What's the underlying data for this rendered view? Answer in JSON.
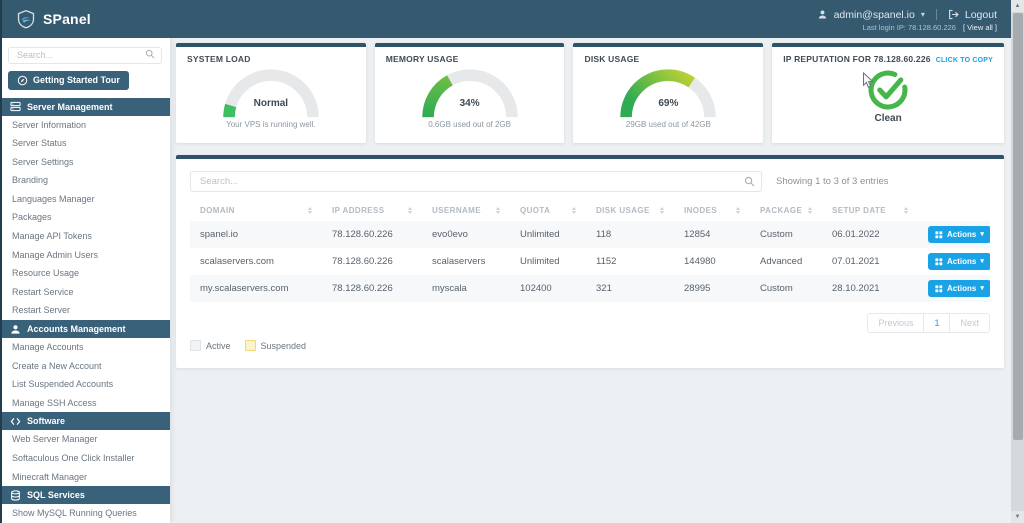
{
  "colors": {
    "header_bg": "#35596e",
    "section_bg": "#3a617a",
    "panel_top_border": "#2e5368",
    "accent_blue": "#19a2e5",
    "status_green": "#45b649",
    "gauge_track": "#e6e8ea"
  },
  "header": {
    "brand": "SPanel",
    "user_email": "admin@spanel.io",
    "logout_label": "Logout",
    "last_login_label": "Last login IP: 78.128.60.226",
    "view_all_label": "[ View all ]"
  },
  "sidebar": {
    "search_placeholder": "Search...",
    "tour_button_label": "Getting Started Tour",
    "sections": [
      {
        "icon": "server-icon",
        "label": "Server Management",
        "items": [
          "Server Information",
          "Server Status",
          "Server Settings",
          "Branding",
          "Languages Manager",
          "Packages",
          "Manage API Tokens",
          "Manage Admin Users",
          "Resource Usage",
          "Restart Service",
          "Restart Server"
        ]
      },
      {
        "icon": "users-icon",
        "label": "Accounts Management",
        "items": [
          "Manage Accounts",
          "Create a New Account",
          "List Suspended Accounts",
          "Manage SSH Access"
        ]
      },
      {
        "icon": "code-icon",
        "label": "Software",
        "items": [
          "Web Server Manager",
          "Softaculous One Click Installer",
          "Minecraft Manager"
        ]
      },
      {
        "icon": "database-icon",
        "label": "SQL Services",
        "items": [
          "Show MySQL Running Queries"
        ]
      }
    ]
  },
  "cards": {
    "system_load": {
      "title": "SYSTEM LOAD",
      "gauge_percent": 9,
      "value": "Normal",
      "subtitle": "Your VPS is running well."
    },
    "memory": {
      "title": "MEMORY USAGE",
      "gauge_percent": 34,
      "value": "34%",
      "subtitle": "0.6GB used out of 2GB"
    },
    "disk": {
      "title": "DISK USAGE",
      "gauge_percent": 69,
      "value": "69%",
      "subtitle": "29GB used out of 42GB"
    },
    "ip_reputation": {
      "title": "IP REPUTATION FOR 78.128.60.226",
      "copy_link_label": "CLICK TO COPY",
      "status": "Clean"
    }
  },
  "table": {
    "search_placeholder": "Search...",
    "showing_text": "Showing 1 to 3 of 3 entries",
    "columns": [
      "DOMAIN",
      "IP ADDRESS",
      "USERNAME",
      "QUOTA",
      "DISK USAGE",
      "INODES",
      "PACKAGE",
      "SETUP DATE"
    ],
    "actions_label": "Actions",
    "rows": [
      [
        "spanel.io",
        "78.128.60.226",
        "evo0evo",
        "Unlimited",
        "118",
        "12854",
        "Custom",
        "06.01.2022"
      ],
      [
        "scalaservers.com",
        "78.128.60.226",
        "scalaservers",
        "Unlimited",
        "1152",
        "144980",
        "Advanced",
        "07.01.2021"
      ],
      [
        "my.scalaservers.com",
        "78.128.60.226",
        "myscala",
        "102400",
        "321",
        "28995",
        "Custom",
        "28.10.2021"
      ]
    ],
    "pagination": [
      "Previous",
      "1",
      "Next"
    ],
    "active_page": "1",
    "legend": [
      {
        "label": "Active",
        "swatch_color": "#f1f3f5",
        "swatch_border": "#dfe3e6"
      },
      {
        "label": "Suspended",
        "swatch_color": "#fbf3cd",
        "swatch_border": "#f0d878"
      }
    ]
  }
}
